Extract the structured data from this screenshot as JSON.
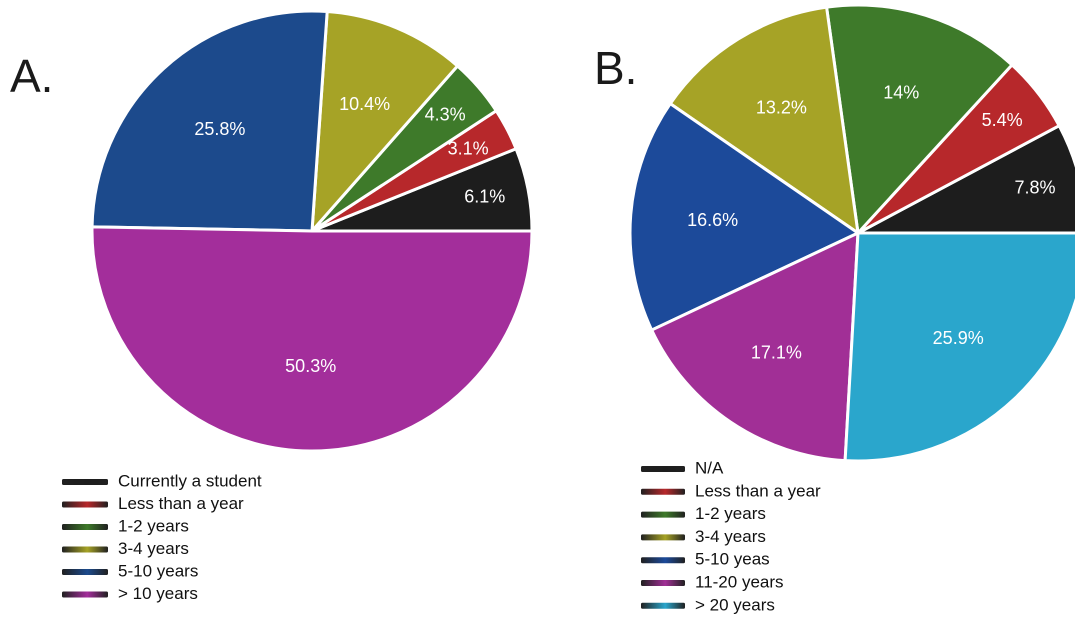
{
  "chart_data": [
    {
      "type": "pie",
      "panel_label": "A.",
      "slices": [
        {
          "label": "Currently a student",
          "value": 6.1,
          "display": "6.1%",
          "color": "#1d1d1d"
        },
        {
          "label": "Less than a year",
          "value": 3.1,
          "display": "3.1%",
          "color": "#b7282b"
        },
        {
          "label": "1-2 years",
          "value": 4.3,
          "display": "4.3%",
          "color": "#3e7a2a"
        },
        {
          "label": "3-4 years",
          "value": 10.4,
          "display": "10.4%",
          "color": "#a6a326"
        },
        {
          "label": "5-10 years",
          "value": 25.8,
          "display": "25.8%",
          "color": "#1c4a8c"
        },
        {
          "label": "> 10 years",
          "value": 50.3,
          "display": "50.3%",
          "color": "#a32e9b"
        }
      ],
      "start": "3 o'clock",
      "direction": "counterclockwise",
      "legend_position": "bottom-left"
    },
    {
      "type": "pie",
      "panel_label": "B.",
      "slices": [
        {
          "label": "N/A",
          "value": 7.8,
          "display": "7.8%",
          "color": "#1d1d1d"
        },
        {
          "label": "Less than a year",
          "value": 5.4,
          "display": "5.4%",
          "color": "#b7282b"
        },
        {
          "label": "1-2 years",
          "value": 14,
          "display": "14%",
          "color": "#3e7a2a"
        },
        {
          "label": "3-4 years",
          "value": 13.2,
          "display": "13.2%",
          "color": "#a6a326"
        },
        {
          "label": "5-10 yeas",
          "value": 16.6,
          "display": "16.6%",
          "color": "#1c4a9a"
        },
        {
          "label": "11-20 years",
          "value": 17.1,
          "display": "17.1%",
          "color": "#a12f96"
        },
        {
          "label": "> 20 years",
          "value": 25.9,
          "display": "25.9%",
          "color": "#2aa6cc"
        }
      ],
      "start": "3 o'clock",
      "direction": "counterclockwise",
      "legend_position": "bottom-left"
    }
  ]
}
